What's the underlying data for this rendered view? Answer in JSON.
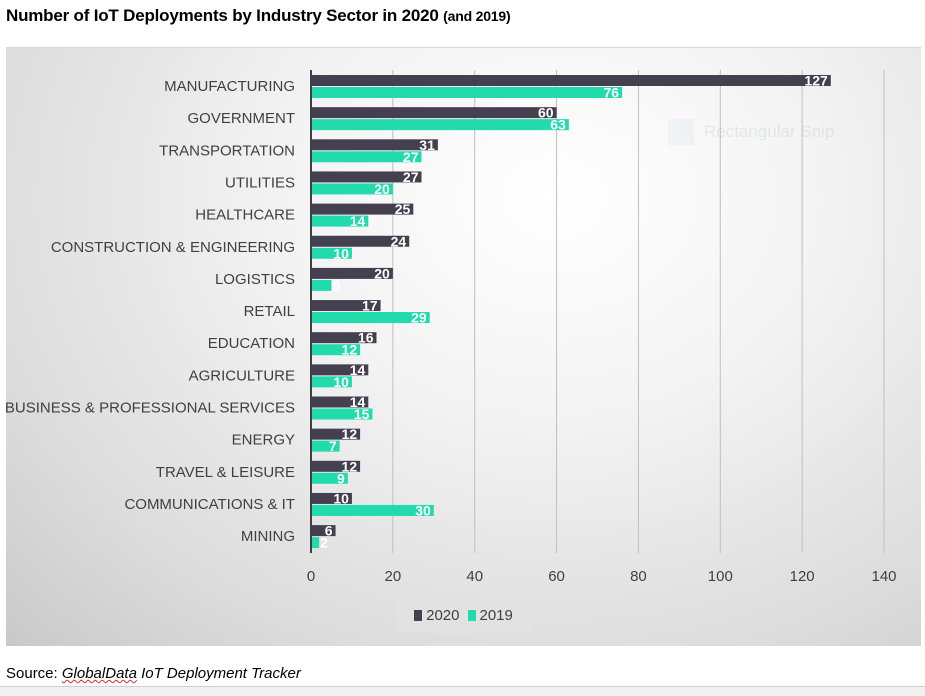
{
  "title": {
    "main": "Number of IoT Deployments by Industry Sector in 2020",
    "sub": "(and 2019)"
  },
  "overlay": {
    "ghost_label": "Rectangular Snip"
  },
  "source": {
    "prefix": "Source: ",
    "name": "GlobalData",
    "rest": " IoT Deployment Tracker"
  },
  "colors": {
    "series_2020": "#45404f",
    "series_2019": "#22dbac",
    "axis_line": "#404040",
    "gridline": "#bfbfbf"
  },
  "chart_data": {
    "type": "bar",
    "orientation": "horizontal",
    "title": "Number of IoT Deployments by Industry Sector in 2020 (and 2019)",
    "xlabel": "",
    "ylabel": "",
    "xlim": [
      0,
      140
    ],
    "xticks": [
      0,
      20,
      40,
      60,
      80,
      100,
      120,
      140
    ],
    "grid": true,
    "legend_position": "bottom",
    "categories": [
      "MANUFACTURING",
      "GOVERNMENT",
      "TRANSPORTATION",
      "UTILITIES",
      "HEALTHCARE",
      "CONSTRUCTION & ENGINEERING",
      "LOGISTICS",
      "RETAIL",
      "EDUCATION",
      "AGRICULTURE",
      "BUSINESS & PROFESSIONAL SERVICES",
      "ENERGY",
      "TRAVEL & LEISURE",
      "COMMUNICATIONS & IT",
      "MINING"
    ],
    "series": [
      {
        "name": "2020",
        "color": "#45404f",
        "values": [
          127,
          60,
          31,
          27,
          25,
          24,
          20,
          17,
          16,
          14,
          14,
          12,
          12,
          10,
          6
        ]
      },
      {
        "name": "2019",
        "color": "#22dbac",
        "values": [
          76,
          63,
          27,
          20,
          14,
          10,
          5,
          29,
          12,
          10,
          15,
          7,
          9,
          30,
          2
        ]
      }
    ]
  }
}
